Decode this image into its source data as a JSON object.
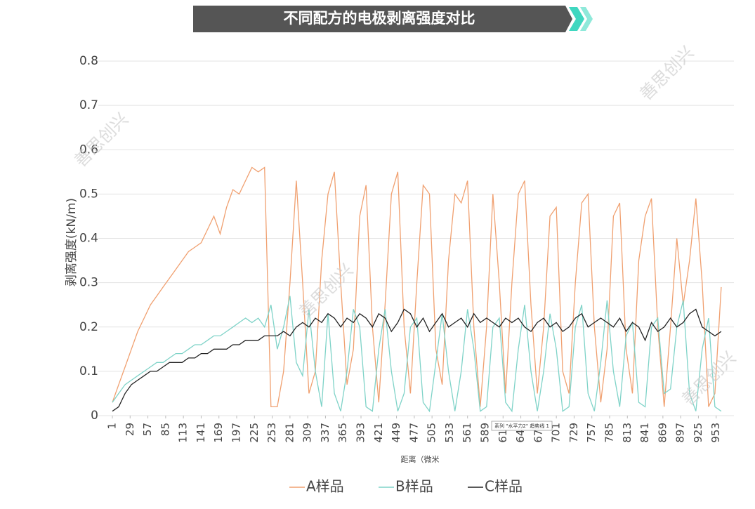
{
  "chart_data": {
    "type": "line",
    "title": "不同配方的电极剥离强度对比",
    "y_label": "剥离强度(kN/m)",
    "x_label": "距离（微米",
    "watermark": "善思创兴",
    "tooltip": "系列 \"水平力2\" 趋势线 1",
    "grid": true,
    "legend": "bottom",
    "xlim": [
      1,
      981
    ],
    "ylim": [
      0,
      0.8
    ],
    "yticks": [
      0,
      0.1,
      0.2,
      0.3,
      0.4,
      0.5,
      0.6,
      0.7,
      0.8
    ],
    "xticks": [
      1,
      29,
      57,
      85,
      113,
      141,
      169,
      197,
      225,
      253,
      281,
      309,
      337,
      365,
      393,
      421,
      449,
      477,
      505,
      533,
      561,
      589,
      617,
      645,
      673,
      701,
      729,
      757,
      785,
      813,
      841,
      869,
      897,
      925,
      953
    ],
    "x": [
      1,
      11,
      21,
      31,
      41,
      51,
      61,
      71,
      81,
      91,
      101,
      111,
      121,
      131,
      141,
      151,
      161,
      171,
      181,
      191,
      201,
      211,
      221,
      231,
      241,
      251,
      261,
      271,
      281,
      291,
      301,
      311,
      321,
      331,
      341,
      351,
      361,
      371,
      381,
      391,
      401,
      411,
      421,
      431,
      441,
      451,
      461,
      471,
      481,
      491,
      501,
      511,
      521,
      531,
      541,
      551,
      561,
      571,
      581,
      591,
      601,
      611,
      621,
      631,
      641,
      651,
      661,
      671,
      681,
      691,
      701,
      711,
      721,
      731,
      741,
      751,
      761,
      771,
      781,
      791,
      801,
      811,
      821,
      831,
      841,
      851,
      861,
      871,
      881,
      891,
      901,
      911,
      921,
      931,
      941,
      951,
      961
    ],
    "series": [
      {
        "name": "A样品",
        "color": "#f0a070",
        "values": [
          0.03,
          0.07,
          0.11,
          0.15,
          0.19,
          0.22,
          0.25,
          0.27,
          0.29,
          0.31,
          0.33,
          0.35,
          0.37,
          0.38,
          0.39,
          0.42,
          0.45,
          0.41,
          0.47,
          0.51,
          0.5,
          0.53,
          0.56,
          0.55,
          0.56,
          0.02,
          0.02,
          0.1,
          0.3,
          0.53,
          0.3,
          0.05,
          0.1,
          0.35,
          0.5,
          0.55,
          0.3,
          0.07,
          0.15,
          0.45,
          0.52,
          0.2,
          0.03,
          0.25,
          0.5,
          0.55,
          0.2,
          0.05,
          0.3,
          0.52,
          0.5,
          0.15,
          0.07,
          0.35,
          0.5,
          0.48,
          0.53,
          0.2,
          0.02,
          0.2,
          0.5,
          0.3,
          0.05,
          0.3,
          0.5,
          0.53,
          0.25,
          0.05,
          0.2,
          0.45,
          0.47,
          0.1,
          0.05,
          0.3,
          0.48,
          0.5,
          0.2,
          0.03,
          0.15,
          0.45,
          0.48,
          0.15,
          0.05,
          0.35,
          0.45,
          0.49,
          0.2,
          0.02,
          0.2,
          0.4,
          0.25,
          0.35,
          0.49,
          0.3,
          0.02,
          0.05,
          0.29
        ]
      },
      {
        "name": "B样品",
        "color": "#7fd3c8",
        "values": [
          0.03,
          0.05,
          0.07,
          0.08,
          0.09,
          0.1,
          0.11,
          0.12,
          0.12,
          0.13,
          0.14,
          0.14,
          0.15,
          0.16,
          0.16,
          0.17,
          0.18,
          0.18,
          0.19,
          0.2,
          0.21,
          0.22,
          0.21,
          0.22,
          0.2,
          0.25,
          0.15,
          0.2,
          0.27,
          0.12,
          0.09,
          0.24,
          0.1,
          0.02,
          0.23,
          0.05,
          0.01,
          0.1,
          0.24,
          0.2,
          0.02,
          0.01,
          0.15,
          0.24,
          0.1,
          0.01,
          0.05,
          0.2,
          0.22,
          0.03,
          0.01,
          0.12,
          0.23,
          0.1,
          0.01,
          0.1,
          0.24,
          0.15,
          0.01,
          0.02,
          0.2,
          0.22,
          0.03,
          0.01,
          0.15,
          0.25,
          0.1,
          0.01,
          0.1,
          0.23,
          0.15,
          0.01,
          0.02,
          0.2,
          0.25,
          0.05,
          0.01,
          0.12,
          0.26,
          0.1,
          0.02,
          0.18,
          0.21,
          0.03,
          0.02,
          0.2,
          0.22,
          0.05,
          0.06,
          0.2,
          0.26,
          0.05,
          0.01,
          0.15,
          0.22,
          0.02,
          0.01
        ]
      },
      {
        "name": "C样品",
        "color": "#222222",
        "values": [
          0.01,
          0.02,
          0.05,
          0.07,
          0.08,
          0.09,
          0.1,
          0.1,
          0.11,
          0.12,
          0.12,
          0.12,
          0.13,
          0.13,
          0.14,
          0.14,
          0.15,
          0.15,
          0.15,
          0.16,
          0.16,
          0.17,
          0.17,
          0.17,
          0.18,
          0.18,
          0.18,
          0.19,
          0.18,
          0.2,
          0.21,
          0.2,
          0.22,
          0.21,
          0.23,
          0.22,
          0.2,
          0.22,
          0.21,
          0.23,
          0.22,
          0.2,
          0.23,
          0.22,
          0.19,
          0.21,
          0.24,
          0.23,
          0.2,
          0.22,
          0.19,
          0.21,
          0.23,
          0.2,
          0.21,
          0.22,
          0.2,
          0.23,
          0.21,
          0.22,
          0.21,
          0.2,
          0.22,
          0.21,
          0.22,
          0.2,
          0.19,
          0.21,
          0.22,
          0.2,
          0.21,
          0.19,
          0.2,
          0.22,
          0.23,
          0.2,
          0.21,
          0.22,
          0.21,
          0.2,
          0.22,
          0.19,
          0.21,
          0.2,
          0.17,
          0.21,
          0.19,
          0.2,
          0.22,
          0.2,
          0.21,
          0.23,
          0.24,
          0.2,
          0.19,
          0.18,
          0.19
        ]
      }
    ]
  }
}
